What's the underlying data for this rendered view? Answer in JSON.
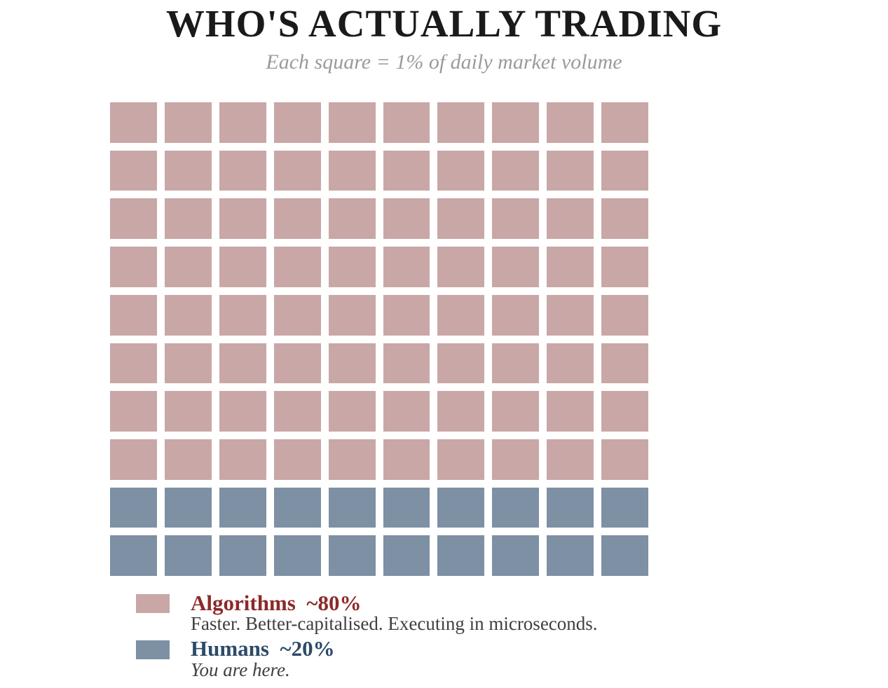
{
  "page": {
    "title": "WHO'S ACTUALLY TRADING",
    "subtitle": "Each square = 1% of daily market volume"
  },
  "colors": {
    "title_text": "#1a1a1a",
    "subtitle_text": "#9a9a9a",
    "description_text": "#3f3f3f",
    "background": "#ffffff"
  },
  "chart_data": {
    "type": "waffle",
    "title": "WHO'S ACTUALLY TRADING",
    "subtitle": "Each square = 1% of daily market volume",
    "square_unit": "1% of daily market volume",
    "grid": {
      "rows": 10,
      "cols": 10,
      "total_squares": 100
    },
    "series": [
      {
        "name": "Algorithms",
        "label": "Algorithms  ~80%",
        "value_pct": 80,
        "squares": 80,
        "color": "#c9a7a7",
        "label_color": "#8e2929",
        "description": "Faster. Better-capitalised. Executing in microseconds."
      },
      {
        "name": "Humans",
        "label": "Humans  ~20%",
        "value_pct": 20,
        "squares": 20,
        "color": "#7d90a4",
        "label_color": "#2d4a68",
        "description": "You are here."
      }
    ],
    "legend_position": "bottom-left",
    "grid_lines": false,
    "fill_order": "top-to-bottom, Algorithms first (rows 1-8), Humans last (rows 9-10)"
  }
}
